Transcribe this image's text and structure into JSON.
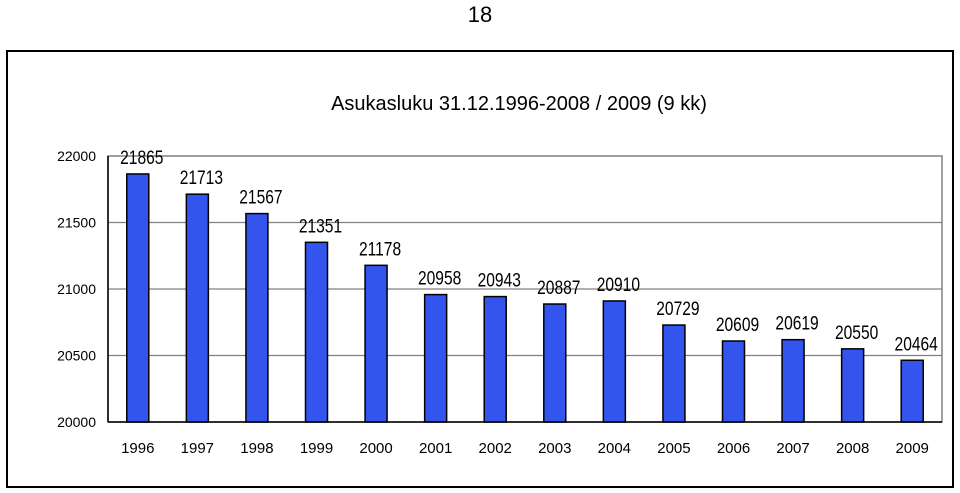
{
  "page_number": "18",
  "chart_data": {
    "type": "bar",
    "title": "Asukasluku 31.12.1996-2008 / 2009 (9 kk)",
    "xlabel": "",
    "ylabel": "",
    "categories": [
      "1996",
      "1997",
      "1998",
      "1999",
      "2000",
      "2001",
      "2002",
      "2003",
      "2004",
      "2005",
      "2006",
      "2007",
      "2008",
      "2009"
    ],
    "values": [
      21865,
      21713,
      21567,
      21351,
      21178,
      20958,
      20943,
      20887,
      20910,
      20729,
      20609,
      20619,
      20550,
      20464
    ],
    "ylim": [
      20000,
      22000
    ],
    "yticks": [
      "20000",
      "20500",
      "21000",
      "21500",
      "22000"
    ],
    "bar_color": "#3355ee",
    "grid": true,
    "legend": "none"
  }
}
